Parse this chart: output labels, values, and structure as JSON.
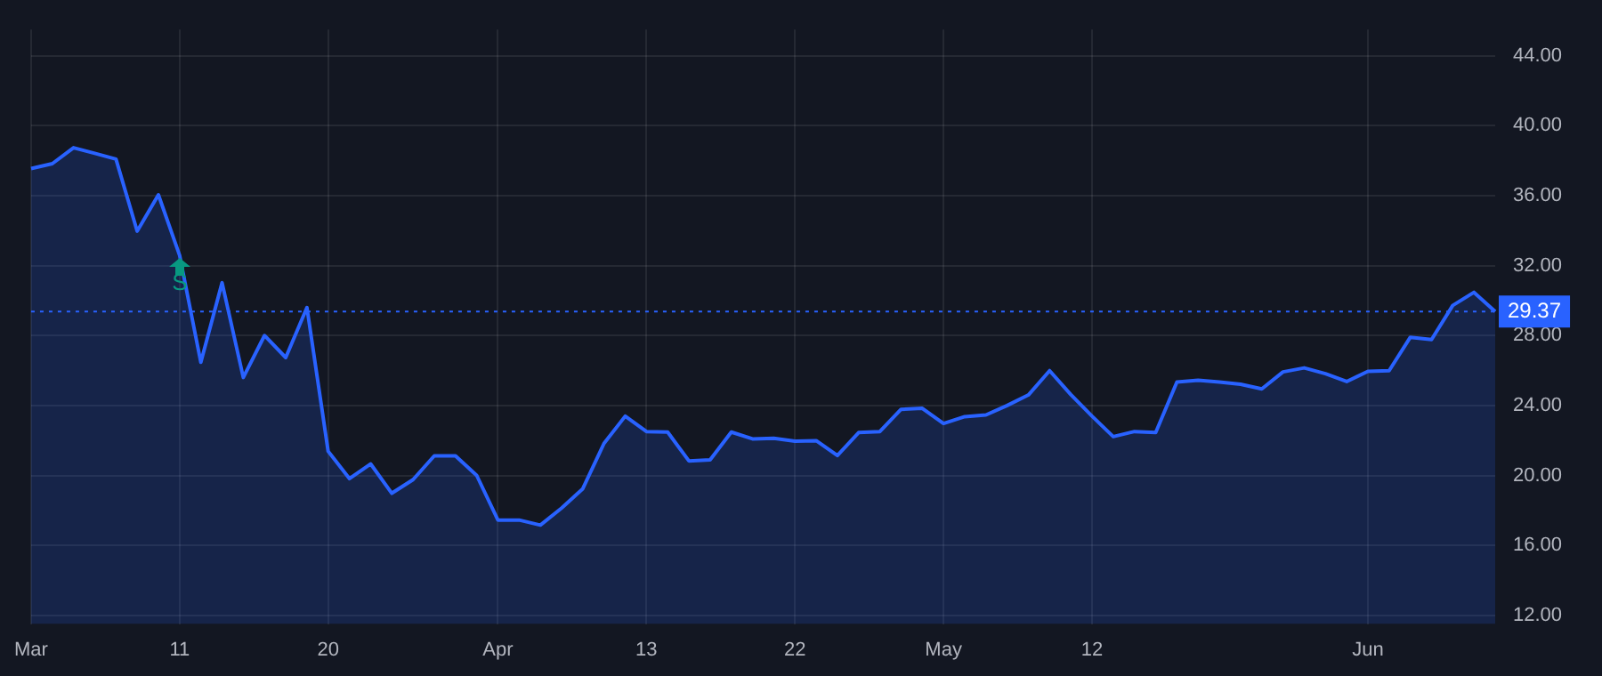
{
  "chart_data": {
    "type": "area",
    "categories": [
      "Mar",
      null,
      null,
      null,
      null,
      null,
      null,
      "11",
      null,
      null,
      null,
      null,
      null,
      null,
      "20",
      null,
      null,
      null,
      null,
      null,
      null,
      null,
      "Apr",
      null,
      null,
      null,
      null,
      null,
      null,
      "13",
      null,
      null,
      null,
      null,
      null,
      null,
      "22",
      null,
      null,
      null,
      null,
      null,
      null,
      "May",
      null,
      null,
      null,
      null,
      null,
      null,
      "12",
      null,
      null,
      null,
      null,
      null,
      null,
      null,
      null,
      null,
      null,
      null,
      null,
      "Jun",
      null,
      null,
      null,
      null,
      null,
      null
    ],
    "series": [
      {
        "color": "#2962ff",
        "values": [
          37.55,
          37.83,
          38.74,
          38.42,
          38.09,
          33.97,
          36.05,
          32.58,
          26.47,
          31.02,
          25.6,
          28.0,
          26.74,
          29.6,
          21.38,
          19.82,
          20.66,
          18.98,
          19.76,
          21.12,
          21.12,
          20.0,
          17.45,
          17.45,
          17.16,
          18.13,
          19.24,
          21.83,
          23.39,
          22.51,
          22.48,
          20.83,
          20.89,
          22.48,
          22.09,
          22.12,
          21.96,
          21.99,
          21.14,
          22.45,
          22.51,
          23.78,
          23.84,
          22.97,
          23.36,
          23.46,
          24.0,
          24.6,
          25.99,
          24.62,
          23.39,
          22.22,
          22.51,
          22.45,
          25.34,
          25.44,
          25.34,
          25.21,
          24.95,
          25.92,
          26.15,
          25.82,
          25.37,
          25.95,
          25.99,
          27.9,
          27.77,
          29.72,
          30.47,
          29.37
        ]
      }
    ],
    "ylim": [
      11.5,
      45.5
    ],
    "yticks": [
      {
        "value": 12,
        "label": "12.00"
      },
      {
        "value": 16,
        "label": "16.00"
      },
      {
        "value": 20,
        "label": "20.00"
      },
      {
        "value": 24,
        "label": "24.00"
      },
      {
        "value": 28,
        "label": "28.00"
      },
      {
        "value": 32,
        "label": "32.00"
      },
      {
        "value": 36,
        "label": "36.00"
      },
      {
        "value": 40,
        "label": "40.00"
      },
      {
        "value": 44,
        "label": "44.00"
      }
    ],
    "ref_lines": [
      {
        "axis": "y",
        "value": 29.37,
        "label": "29.37",
        "color": "#2962ff",
        "line_style": "dotted"
      }
    ],
    "annotations": [
      {
        "text": "S",
        "x": "11",
        "y": 32.58
      }
    ],
    "grid": true,
    "legend": false,
    "marker": "none",
    "line_style": "solid"
  }
}
